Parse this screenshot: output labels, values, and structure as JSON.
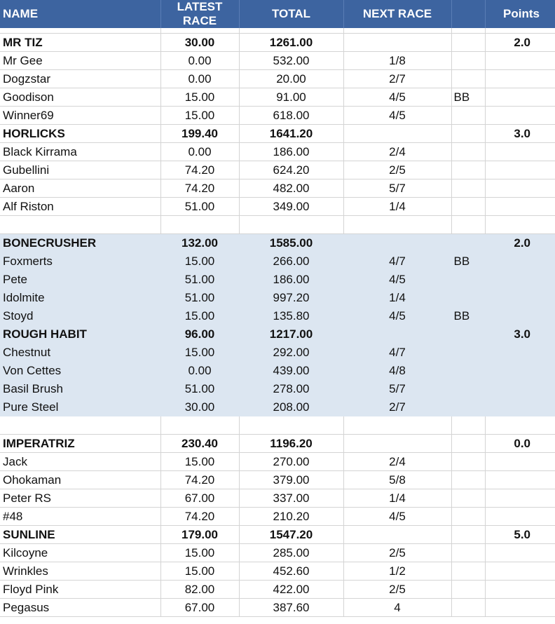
{
  "headers": {
    "name": "NAME",
    "latest": "LATEST RACE",
    "total": "TOTAL",
    "next": "NEXT RACE",
    "extra": "",
    "points": "Points"
  },
  "groups": [
    {
      "shaded": false,
      "teams": [
        {
          "name": "MR TIZ",
          "latest": "30.00",
          "total": "1261.00",
          "points": "2.0",
          "members": [
            {
              "name": "Mr Gee",
              "latest": "0.00",
              "total": "532.00",
              "next": "1/8",
              "extra": ""
            },
            {
              "name": "Dogzstar",
              "latest": "0.00",
              "total": "20.00",
              "next": "2/7",
              "extra": ""
            },
            {
              "name": "Goodison",
              "latest": "15.00",
              "total": "91.00",
              "next": "4/5",
              "extra": "BB"
            },
            {
              "name": "Winner69",
              "latest": "15.00",
              "total": "618.00",
              "next": "4/5",
              "extra": ""
            }
          ]
        },
        {
          "name": "HORLICKS",
          "latest": "199.40",
          "total": "1641.20",
          "points": "3.0",
          "members": [
            {
              "name": "Black Kirrama",
              "latest": "0.00",
              "total": "186.00",
              "next": "2/4",
              "extra": ""
            },
            {
              "name": "Gubellini",
              "latest": "74.20",
              "total": "624.20",
              "next": "2/5",
              "extra": ""
            },
            {
              "name": "Aaron",
              "latest": "74.20",
              "total": "482.00",
              "next": "5/7",
              "extra": ""
            },
            {
              "name": "Alf Riston",
              "latest": "51.00",
              "total": "349.00",
              "next": "1/4",
              "extra": ""
            }
          ]
        }
      ]
    },
    {
      "shaded": true,
      "teams": [
        {
          "name": "BONECRUSHER",
          "latest": "132.00",
          "total": "1585.00",
          "points": "2.0",
          "members": [
            {
              "name": "Foxmerts",
              "latest": "15.00",
              "total": "266.00",
              "next": "4/7",
              "extra": "BB"
            },
            {
              "name": "Pete",
              "latest": "51.00",
              "total": "186.00",
              "next": "4/5",
              "extra": ""
            },
            {
              "name": "Idolmite",
              "latest": "51.00",
              "total": "997.20",
              "next": "1/4",
              "extra": ""
            },
            {
              "name": "Stoyd",
              "latest": "15.00",
              "total": "135.80",
              "next": "4/5",
              "extra": "BB"
            }
          ]
        },
        {
          "name": "ROUGH HABIT",
          "latest": "96.00",
          "total": "1217.00",
          "points": "3.0",
          "members": [
            {
              "name": "Chestnut",
              "latest": "15.00",
              "total": "292.00",
              "next": "4/7",
              "extra": ""
            },
            {
              "name": "Von Cettes",
              "latest": "0.00",
              "total": "439.00",
              "next": "4/8",
              "extra": ""
            },
            {
              "name": "Basil Brush",
              "latest": "51.00",
              "total": "278.00",
              "next": "5/7",
              "extra": ""
            },
            {
              "name": "Pure Steel",
              "latest": "30.00",
              "total": "208.00",
              "next": "2/7",
              "extra": ""
            }
          ]
        }
      ]
    },
    {
      "shaded": false,
      "teams": [
        {
          "name": "IMPERATRIZ",
          "latest": "230.40",
          "total": "1196.20",
          "points": "0.0",
          "members": [
            {
              "name": "Jack",
              "latest": "15.00",
              "total": "270.00",
              "next": "2/4",
              "extra": ""
            },
            {
              "name": "Ohokaman",
              "latest": "74.20",
              "total": "379.00",
              "next": "5/8",
              "extra": ""
            },
            {
              "name": "Peter RS",
              "latest": "67.00",
              "total": "337.00",
              "next": "1/4",
              "extra": ""
            },
            {
              "name": "#48",
              "latest": "74.20",
              "total": "210.20",
              "next": "4/5",
              "extra": ""
            }
          ]
        },
        {
          "name": "SUNLINE",
          "latest": "179.00",
          "total": "1547.20",
          "points": "5.0",
          "members": [
            {
              "name": "Kilcoyne",
              "latest": "15.00",
              "total": "285.00",
              "next": "2/5",
              "extra": ""
            },
            {
              "name": "Wrinkles",
              "latest": "15.00",
              "total": "452.60",
              "next": "1/2",
              "extra": ""
            },
            {
              "name": "Floyd Pink",
              "latest": "82.00",
              "total": "422.00",
              "next": "2/5",
              "extra": ""
            },
            {
              "name": "Pegasus",
              "latest": "67.00",
              "total": "387.60",
              "next": "4",
              "extra": ""
            }
          ]
        }
      ]
    }
  ]
}
